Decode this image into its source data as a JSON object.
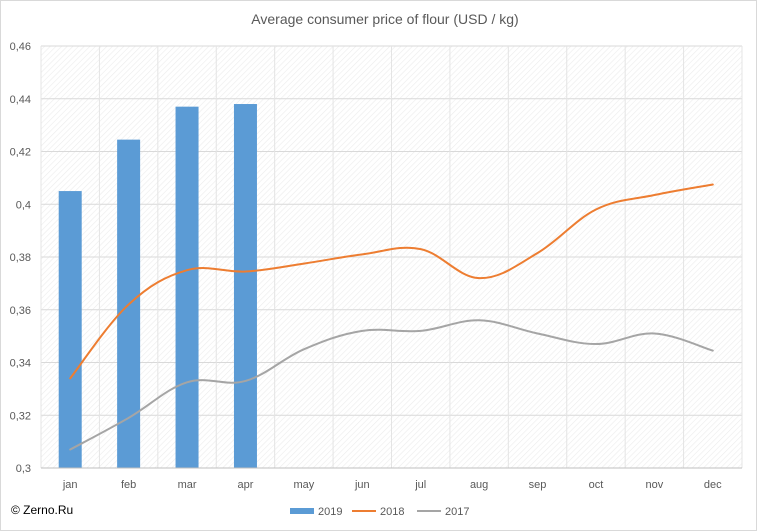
{
  "chart_data": {
    "type": "bar+line",
    "title": "Average consumer price of flour (USD / kg)",
    "categories": [
      "jan",
      "feb",
      "mar",
      "apr",
      "may",
      "jun",
      "jul",
      "aug",
      "sep",
      "oct",
      "nov",
      "dec"
    ],
    "series": [
      {
        "name": "2019",
        "kind": "bar",
        "color": "#5b9bd5",
        "values": [
          0.405,
          0.4245,
          0.437,
          0.438,
          null,
          null,
          null,
          null,
          null,
          null,
          null,
          null
        ]
      },
      {
        "name": "2018",
        "kind": "line",
        "color": "#ed7d31",
        "values": [
          0.334,
          0.362,
          0.375,
          0.3745,
          0.3775,
          0.381,
          0.383,
          0.372,
          0.3815,
          0.398,
          0.4035,
          0.4075
        ]
      },
      {
        "name": "2017",
        "kind": "line",
        "color": "#a5a5a5",
        "values": [
          0.307,
          0.319,
          0.3325,
          0.333,
          0.345,
          0.352,
          0.352,
          0.356,
          0.351,
          0.347,
          0.351,
          0.3445
        ]
      }
    ],
    "ylim": [
      0.3,
      0.46
    ],
    "yticks": [
      "0,3",
      "0,32",
      "0,34",
      "0,36",
      "0,38",
      "0,4",
      "0,42",
      "0,44",
      "0,46"
    ],
    "grid": true,
    "legend": "bottom-center"
  },
  "watermark": "© Zerno.Ru"
}
